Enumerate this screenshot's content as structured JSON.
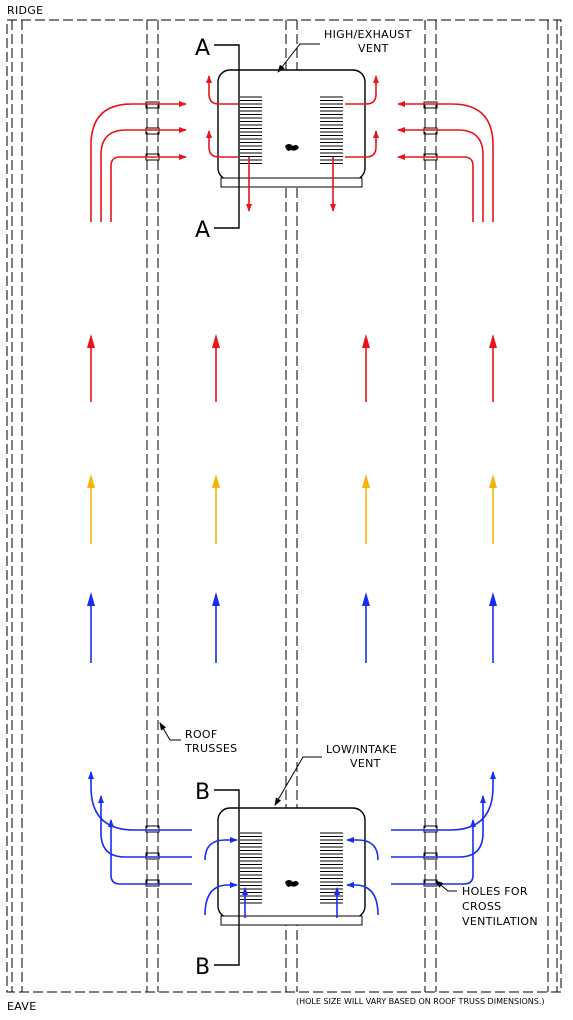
{
  "labels": {
    "ridge": "RIDGE",
    "eave": "EAVE",
    "high_vent_line1": "HIGH/EXHAUST",
    "high_vent_line2": "VENT",
    "low_vent_line1": "LOW/INTAKE",
    "low_vent_line2": "VENT",
    "trusses_line1": "ROOF",
    "trusses_line2": "TRUSSES",
    "holes_line1": "HOLES FOR",
    "holes_line2": "CROSS",
    "holes_line3": "VENTILATION",
    "section_a": "A",
    "section_b": "B",
    "footnote": "(HOLE SIZE WILL VARY BASED ON ROOF TRUSS DIMENSIONS.)"
  },
  "colors": {
    "hot_air": "#e8141c",
    "warm_air": "#f5b40a",
    "cool_air": "#1a2cf0",
    "line": "#000000"
  }
}
